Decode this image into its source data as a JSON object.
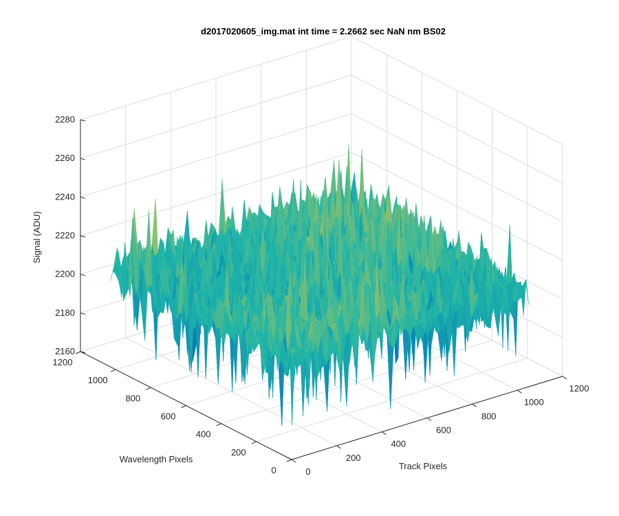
{
  "chart_data": {
    "type": "surface",
    "title": "d2017020605_img.mat int time = 2.2662 sec  NaN nm BS02",
    "xlabel": "Track Pixels",
    "ylabel": "Wavelength Pixels",
    "zlabel": "Signal (ADU)",
    "xlim": [
      0,
      1200
    ],
    "ylim": [
      0,
      1200
    ],
    "zlim": [
      2160,
      2280
    ],
    "xticks": [
      "0",
      "200",
      "400",
      "600",
      "800",
      "1000",
      "1200"
    ],
    "yticks": [
      "0",
      "200",
      "400",
      "600",
      "800",
      "1000",
      "1200"
    ],
    "zticks": [
      "2160",
      "2180",
      "2200",
      "2220",
      "2240",
      "2260",
      "2280"
    ],
    "grid": true,
    "colormap": "parula",
    "surface_mean": 2210,
    "surface_range": [
      2165,
      2265
    ]
  },
  "colors": {
    "low": "#0072bd",
    "mid": "#1fb5a8",
    "high": "#e8c93a"
  }
}
